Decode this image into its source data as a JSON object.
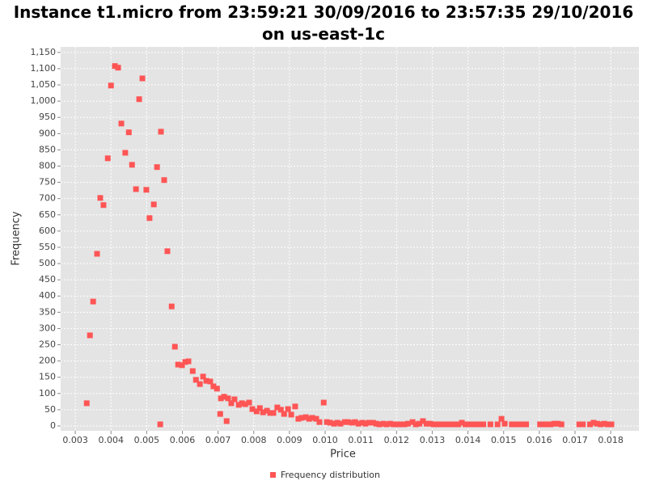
{
  "chart_data": {
    "type": "scatter",
    "title": "Instance t1.micro from 23:59:21 30/09/2016 to 23:57:35 29/10/2016 on us-east-1c",
    "x_label": "Price",
    "y_label": "Frequency",
    "grid": true,
    "legend": "bottom",
    "xlim": [
      0.00259,
      0.01879
    ],
    "ylim": [
      -15,
      1167
    ],
    "xticks": [
      0.003,
      0.004,
      0.005,
      0.006,
      0.007,
      0.008,
      0.009,
      {
        "value": 0.01,
        "label": "0.010"
      },
      0.011,
      0.012,
      0.013,
      0.014,
      0.015,
      0.016,
      0.017,
      0.018
    ],
    "yticks": [
      0,
      50,
      100,
      150,
      200,
      250,
      300,
      350,
      400,
      450,
      500,
      550,
      600,
      650,
      700,
      750,
      800,
      850,
      900,
      950,
      {
        "value": 1000,
        "label": "1,000"
      },
      {
        "value": 1050,
        "label": "1,050"
      },
      {
        "value": 1100,
        "label": "1,100"
      },
      {
        "value": 1150,
        "label": "1,150"
      }
    ],
    "x": [
      0.00332,
      0.00341,
      0.0035,
      0.00361,
      0.0037,
      0.00379,
      0.00391,
      0.004,
      0.00411,
      0.0042,
      0.00429,
      0.0044,
      0.0045,
      0.00459,
      0.0047,
      0.00479,
      0.00488,
      0.00499,
      0.00508,
      0.0052,
      0.00529,
      0.00538,
      0.0054,
      0.00549,
      0.00558,
      0.0057,
      0.00579,
      0.00588,
      0.00599,
      0.00608,
      0.00617,
      0.00629,
      0.00638,
      0.00649,
      0.00658,
      0.00667,
      0.00678,
      0.00687,
      0.00697,
      0.00706,
      0.00708,
      0.00717,
      0.00724,
      0.00728,
      0.00737,
      0.00746,
      0.00758,
      0.00767,
      0.00776,
      0.00787,
      0.00796,
      0.00808,
      0.00817,
      0.00826,
      0.00837,
      0.00846,
      0.00855,
      0.00866,
      0.00876,
      0.00885,
      0.00896,
      0.00905,
      0.00916,
      0.00925,
      0.00934,
      0.00946,
      0.00955,
      0.00964,
      0.00975,
      0.00984,
      0.00996,
      0.01005,
      0.01014,
      0.01025,
      0.01034,
      0.01043,
      0.01055,
      0.01064,
      0.01075,
      0.01084,
      0.01093,
      0.01104,
      0.01113,
      0.01122,
      0.01134,
      0.01143,
      0.01152,
      0.01163,
      0.01172,
      0.01182,
      0.01192,
      0.01202,
      0.01212,
      0.01222,
      0.01232,
      0.01245,
      0.01254,
      0.01264,
      0.01274,
      0.01284,
      0.01294,
      0.01304,
      0.01314,
      0.01323,
      0.01333,
      0.01343,
      0.01353,
      0.01363,
      0.01373,
      0.01383,
      0.01393,
      0.01403,
      0.01413,
      0.01423,
      0.01433,
      0.01443,
      0.01463,
      0.01483,
      0.01494,
      0.01503,
      0.01523,
      0.01533,
      0.01543,
      0.01553,
      0.01563,
      0.01602,
      0.01612,
      0.01622,
      0.01632,
      0.01642,
      0.01652,
      0.01662,
      0.01712,
      0.01722,
      0.01742,
      0.01752,
      0.01762,
      0.01772,
      0.01782,
      0.01792,
      0.01802
    ],
    "series": [
      {
        "name": "Frequency distribution",
        "color": "#ff5555",
        "values": [
          70,
          279,
          383,
          530,
          702,
          680,
          824,
          1048,
          1108,
          1103,
          931,
          841,
          904,
          804,
          729,
          1006,
          1070,
          727,
          640,
          682,
          797,
          5,
          906,
          757,
          538,
          368,
          244,
          189,
          187,
          197,
          199,
          169,
          142,
          129,
          152,
          139,
          137,
          122,
          115,
          37,
          85,
          90,
          15,
          85,
          70,
          82,
          65,
          70,
          67,
          72,
          52,
          45,
          55,
          42,
          47,
          40,
          40,
          57,
          50,
          37,
          52,
          35,
          60,
          22,
          25,
          27,
          22,
          25,
          22,
          12,
          72,
          12,
          10,
          7,
          10,
          7,
          12,
          12,
          10,
          12,
          7,
          10,
          7,
          10,
          10,
          7,
          5,
          7,
          5,
          7,
          5,
          5,
          5,
          5,
          7,
          12,
          5,
          7,
          15,
          7,
          7,
          5,
          5,
          5,
          5,
          5,
          5,
          5,
          5,
          10,
          5,
          5,
          5,
          5,
          5,
          5,
          5,
          5,
          22,
          7,
          5,
          5,
          5,
          5,
          5,
          5,
          5,
          5,
          5,
          7,
          7,
          5,
          5,
          5,
          5,
          10,
          7,
          5,
          7,
          5,
          5
        ]
      }
    ]
  }
}
